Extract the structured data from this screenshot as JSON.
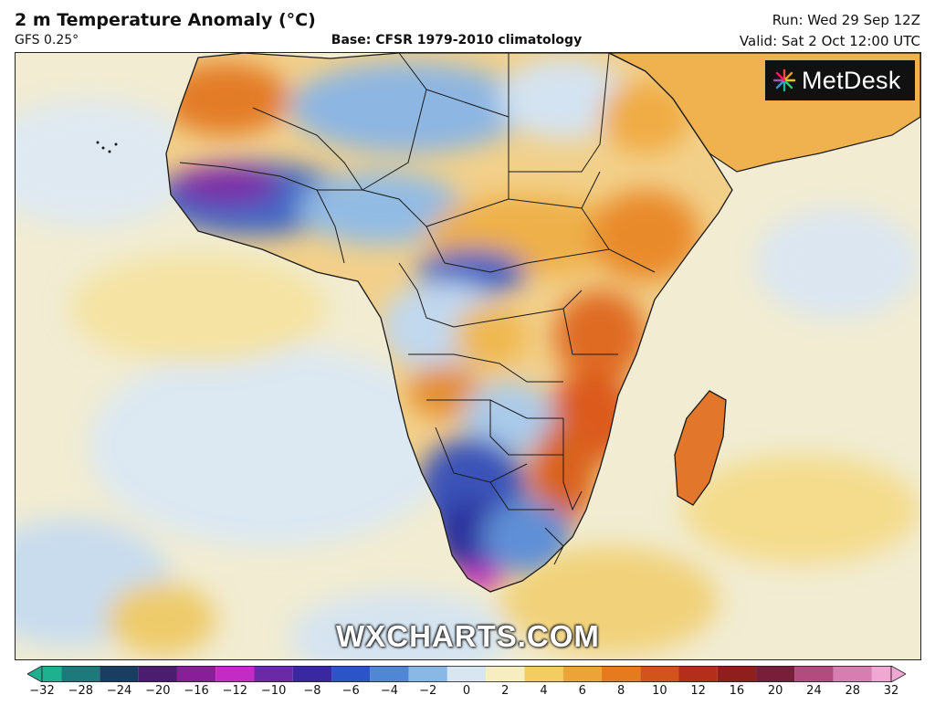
{
  "header": {
    "title": "2 m Temperature Anomaly (°C)",
    "model": "GFS 0.25°",
    "base": "Base: CFSR 1979-2010 climatology",
    "run": "Run: Wed 29 Sep 12Z",
    "valid": "Valid: Sat 2 Oct 12:00 UTC"
  },
  "map": {
    "region": "Africa",
    "logo_text": "MetDesk",
    "watermark": "WXCHARTS.COM",
    "land_color": "#f2d08a",
    "ocean_color": "#f1ecd2",
    "border_color": "#1a1a1a"
  },
  "colorbar": {
    "ticks": [
      "−32",
      "−28",
      "−24",
      "−20",
      "−16",
      "−12",
      "−10",
      "−8",
      "−6",
      "−4",
      "−2",
      "0",
      "2",
      "4",
      "6",
      "8",
      "10",
      "12",
      "16",
      "20",
      "24",
      "28",
      "32"
    ],
    "colors": [
      "#1fb08f",
      "#1d7a7a",
      "#1a3d62",
      "#4a1d6e",
      "#8a1d9a",
      "#c42ac6",
      "#6a2aa8",
      "#3a28a0",
      "#2b55c6",
      "#4f86d6",
      "#8ab8e6",
      "#d8e6f2",
      "#f6eec0",
      "#f3cd62",
      "#eea338",
      "#e57a1e",
      "#d2541a",
      "#b42e1c",
      "#8e1f1c",
      "#7a1d3a",
      "#b44b7e",
      "#d97cb2",
      "#f0a8d2"
    ]
  }
}
